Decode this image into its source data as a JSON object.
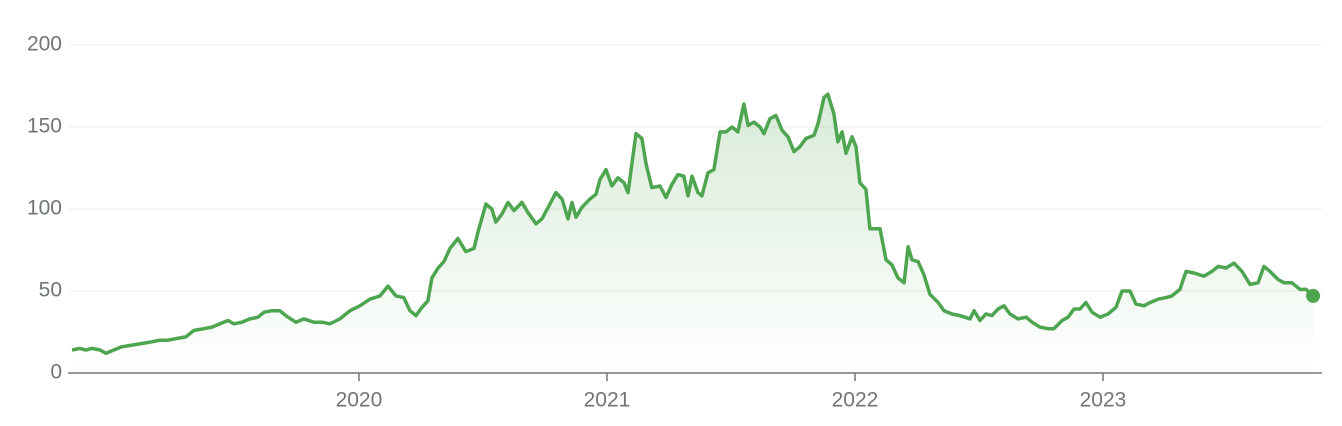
{
  "chart_data": {
    "type": "line",
    "color": "#4ea54f",
    "grid": true,
    "xlim": [
      2018.706,
      2023.883
    ],
    "xticks": [
      2020,
      2021,
      2022,
      2023
    ],
    "ylim": [
      0,
      200
    ],
    "yticks": [
      0,
      50,
      100,
      150,
      200
    ],
    "x": [
      2018.843,
      2018.875,
      2018.899,
      2018.923,
      2018.956,
      2018.98,
      2019.012,
      2019.044,
      2019.085,
      2019.125,
      2019.165,
      2019.198,
      2019.23,
      2019.262,
      2019.302,
      2019.335,
      2019.375,
      2019.407,
      2019.44,
      2019.472,
      2019.496,
      2019.528,
      2019.56,
      2019.593,
      2019.617,
      2019.649,
      2019.681,
      2019.714,
      2019.746,
      2019.778,
      2019.819,
      2019.851,
      2019.883,
      2019.923,
      2019.964,
      2020.004,
      2020.044,
      2020.085,
      2020.117,
      2020.149,
      2020.181,
      2020.206,
      2020.23,
      2020.254,
      2020.278,
      2020.294,
      2020.319,
      2020.343,
      2020.367,
      2020.399,
      2020.431,
      2020.464,
      2020.48,
      2020.512,
      2020.536,
      2020.552,
      2020.577,
      2020.601,
      2020.625,
      2020.657,
      2020.681,
      2020.714,
      2020.738,
      2020.77,
      2020.794,
      2020.819,
      2020.843,
      2020.859,
      2020.875,
      2020.899,
      2020.931,
      2020.956,
      2020.972,
      2020.996,
      2021.02,
      2021.044,
      2021.069,
      2021.085,
      2021.117,
      2021.141,
      2021.157,
      2021.181,
      2021.214,
      2021.238,
      2021.262,
      2021.286,
      2021.31,
      2021.327,
      2021.343,
      2021.367,
      2021.383,
      2021.407,
      2021.431,
      2021.456,
      2021.48,
      2021.504,
      2021.528,
      2021.552,
      2021.569,
      2021.593,
      2021.617,
      2021.633,
      2021.657,
      2021.681,
      2021.706,
      2021.73,
      2021.754,
      2021.778,
      2021.802,
      2021.835,
      2021.851,
      2021.875,
      2021.891,
      2021.915,
      2021.931,
      2021.948,
      2021.964,
      2021.988,
      2022.004,
      2022.02,
      2022.044,
      2022.06,
      2022.101,
      2022.125,
      2022.149,
      2022.173,
      2022.198,
      2022.214,
      2022.23,
      2022.254,
      2022.278,
      2022.302,
      2022.335,
      2022.359,
      2022.391,
      2022.423,
      2022.464,
      2022.48,
      2022.504,
      2022.528,
      2022.552,
      2022.577,
      2022.601,
      2022.625,
      2022.657,
      2022.69,
      2022.714,
      2022.746,
      2022.778,
      2022.802,
      2022.835,
      2022.859,
      2022.883,
      2022.907,
      2022.931,
      2022.956,
      2022.988,
      2023.02,
      2023.052,
      2023.077,
      2023.109,
      2023.133,
      2023.165,
      2023.19,
      2023.222,
      2023.254,
      2023.278,
      2023.31,
      2023.335,
      2023.367,
      2023.407,
      2023.44,
      2023.464,
      2023.496,
      2023.528,
      2023.56,
      2023.593,
      2023.625,
      2023.649,
      2023.673,
      2023.706,
      2023.73,
      2023.762,
      2023.794,
      2023.819,
      2023.847
    ],
    "values": [
      14,
      15,
      14,
      15,
      14,
      12,
      14,
      16,
      17,
      18,
      19,
      20,
      20,
      21,
      22,
      26,
      27,
      28,
      30,
      32,
      30,
      31,
      33,
      34,
      37,
      38,
      38,
      34,
      31,
      33,
      31,
      31,
      30,
      33,
      38,
      41,
      45,
      47,
      53,
      47,
      46,
      38,
      35,
      40,
      44,
      58,
      64,
      68,
      76,
      82,
      74,
      76,
      86,
      103,
      100,
      92,
      97,
      104,
      99,
      104,
      98,
      91,
      94,
      103,
      110,
      106,
      94,
      104,
      95,
      101,
      106,
      109,
      118,
      124,
      114,
      119,
      116,
      110,
      146,
      143,
      128,
      113,
      114,
      107,
      115,
      121,
      120,
      108,
      120,
      110,
      108,
      122,
      124,
      147,
      147,
      150,
      147,
      164,
      151,
      153,
      150,
      146,
      155,
      157,
      148,
      144,
      135,
      138,
      143,
      145,
      152,
      168,
      170,
      158,
      141,
      147,
      134,
      144,
      138,
      116,
      112,
      88,
      88,
      69,
      66,
      58,
      55,
      77,
      69,
      68,
      60,
      48,
      43,
      38,
      36,
      35,
      33,
      38,
      32,
      36,
      35,
      39,
      41,
      36,
      33,
      34,
      31,
      28,
      27,
      27,
      32,
      34,
      39,
      39,
      43,
      37,
      34,
      36,
      40,
      50,
      50,
      42,
      41,
      43,
      45,
      46,
      47,
      51,
      62,
      61,
      59,
      62,
      65,
      64,
      67,
      62,
      54,
      55,
      65,
      62,
      57,
      55,
      55,
      51,
      51,
      47
    ]
  }
}
